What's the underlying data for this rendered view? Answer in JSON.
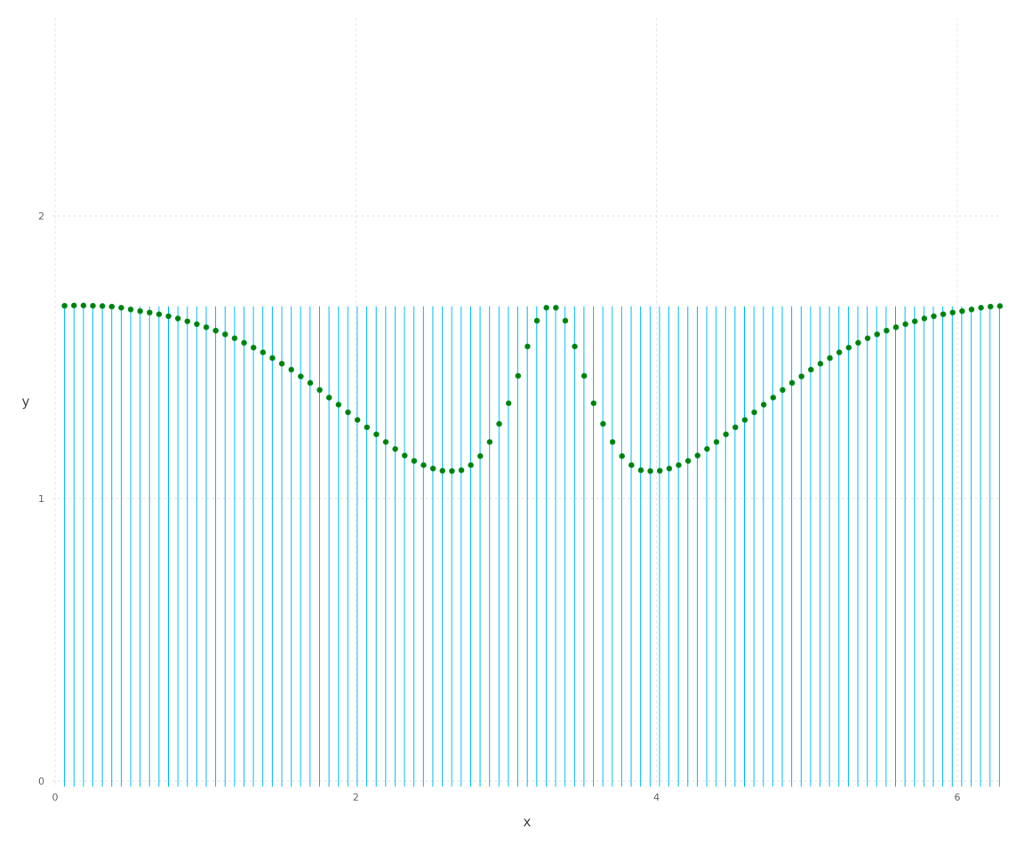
{
  "chart_data": {
    "type": "scatter",
    "title": "",
    "xlabel": "x",
    "ylabel": "y",
    "xlim": [
      -0.02,
      6.28
    ],
    "ylim": [
      -0.02,
      2.7
    ],
    "x_ticks": [
      0,
      2,
      4,
      6
    ],
    "y_ticks": [
      0,
      1,
      2
    ],
    "x_tick_labels": [
      "0",
      "2",
      "4",
      "6"
    ],
    "y_tick_labels": [
      "0",
      "1",
      "2"
    ],
    "grid": true,
    "legend": "none",
    "stem_color": "#00bfff",
    "marker_color": "#008000",
    "stems": {
      "x_start": 0.0628,
      "x_step": 0.0628,
      "count": 100,
      "y_bottom": -0.02,
      "y_top": 1.68
    },
    "series": [
      {
        "x": [
          0.0628,
          0.1257,
          0.1885,
          0.2513,
          0.3142,
          0.377,
          0.4398,
          0.5027,
          0.5655,
          0.6283,
          0.6912,
          0.754,
          0.8168,
          0.8796,
          0.9425,
          1.0053,
          1.0681,
          1.131,
          1.1938,
          1.2566,
          1.3195,
          1.3823,
          1.4451,
          1.508,
          1.5708,
          1.6336,
          1.6965,
          1.7593,
          1.8221,
          1.885,
          1.9478,
          2.0106,
          2.0735,
          2.1363,
          2.1991,
          2.2619,
          2.3248,
          2.3876,
          2.4504,
          2.5133,
          2.5761,
          2.6389,
          2.7018,
          2.7646,
          2.8274,
          2.8903,
          2.9531,
          3.0159,
          3.0788,
          3.1416,
          3.2044,
          3.2673,
          3.3301,
          3.3929,
          3.4558,
          3.5186,
          3.5814,
          3.6442,
          3.7071,
          3.7699,
          3.8327,
          3.8956,
          3.9584,
          4.0212,
          4.0841,
          4.1469,
          4.2097,
          4.2726,
          4.3354,
          4.3982,
          4.4611,
          4.5239,
          4.5867,
          4.6496,
          4.7124,
          4.7752,
          4.8381,
          4.9009,
          4.9637,
          5.0265,
          5.0894,
          5.1522,
          5.215,
          5.2779,
          5.3407,
          5.4035,
          5.4664,
          5.5292,
          5.592,
          5.6549,
          5.7177,
          5.7805,
          5.8434,
          5.9062,
          5.969,
          6.0319,
          6.0947,
          6.1575,
          6.2204,
          6.2832
        ],
        "y": [
          1.682,
          1.683,
          1.683,
          1.682,
          1.681,
          1.679,
          1.675,
          1.669,
          1.663,
          1.658,
          1.652,
          1.645,
          1.637,
          1.627,
          1.617,
          1.606,
          1.594,
          1.581,
          1.567,
          1.551,
          1.534,
          1.517,
          1.497,
          1.477,
          1.456,
          1.432,
          1.409,
          1.384,
          1.357,
          1.332,
          1.305,
          1.278,
          1.252,
          1.227,
          1.2,
          1.175,
          1.152,
          1.133,
          1.118,
          1.106,
          1.098,
          1.097,
          1.1,
          1.118,
          1.15,
          1.2,
          1.264,
          1.337,
          1.434,
          1.538,
          1.629,
          1.675,
          1.675,
          1.629,
          1.538,
          1.434,
          1.337,
          1.264,
          1.2,
          1.15,
          1.118,
          1.1,
          1.097,
          1.098,
          1.106,
          1.118,
          1.133,
          1.152,
          1.175,
          1.2,
          1.227,
          1.252,
          1.278,
          1.305,
          1.332,
          1.357,
          1.384,
          1.409,
          1.432,
          1.456,
          1.477,
          1.497,
          1.517,
          1.534,
          1.551,
          1.567,
          1.581,
          1.594,
          1.606,
          1.617,
          1.627,
          1.637,
          1.645,
          1.652,
          1.658,
          1.663,
          1.669,
          1.675,
          1.679,
          1.681
        ]
      }
    ]
  }
}
